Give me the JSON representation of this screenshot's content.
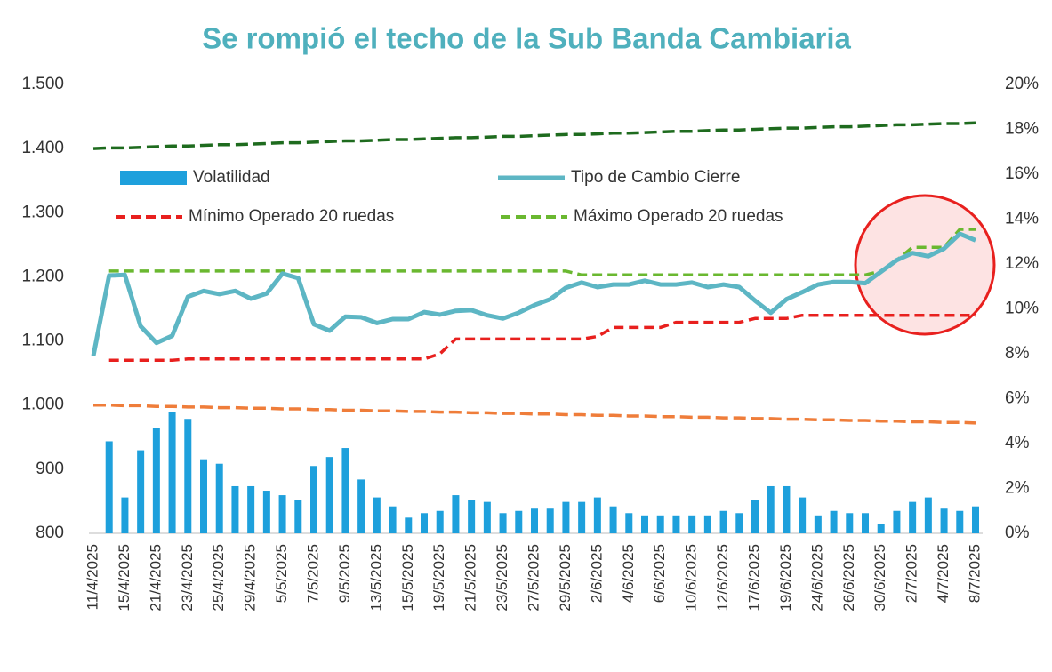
{
  "chart_data": {
    "type": "line",
    "title": "Se rompió el techo de la Sub Banda Cambiaria",
    "categories": [
      "11/4/2025",
      null,
      "15/4/2025",
      null,
      "21/4/2025",
      null,
      "23/4/2025",
      null,
      "25/4/2025",
      null,
      "29/4/2025",
      null,
      "5/5/2025",
      null,
      "7/5/2025",
      null,
      "9/5/2025",
      null,
      "13/5/2025",
      null,
      "15/5/2025",
      null,
      "19/5/2025",
      null,
      "21/5/2025",
      null,
      "23/5/2025",
      null,
      "27/5/2025",
      null,
      "29/5/2025",
      null,
      "2/6/2025",
      null,
      "4/6/2025",
      null,
      "6/6/2025",
      null,
      "10/6/2025",
      null,
      "12/6/2025",
      null,
      "17/6/2025",
      null,
      "19/6/2025",
      null,
      "24/6/2025",
      null,
      "26/6/2025",
      null,
      "30/6/2025",
      null,
      "2/7/2025",
      null,
      "4/7/2025",
      null,
      "8/7/2025"
    ],
    "ylim": [
      800,
      1500
    ],
    "yticks": [
      800,
      900,
      {
        "value": 1000,
        "label": "1.000"
      },
      {
        "value": 1100,
        "label": "1.100"
      },
      {
        "value": 1200,
        "label": "1.200"
      },
      {
        "value": 1300,
        "label": "1.300"
      },
      {
        "value": 1400,
        "label": "1.400"
      },
      {
        "value": 1500,
        "label": "1.500"
      }
    ],
    "y2lim": [
      0,
      20
    ],
    "y2ticks": [
      {
        "value": 0,
        "label": "0%"
      },
      {
        "value": 2,
        "label": "2%"
      },
      {
        "value": 4,
        "label": "4%"
      },
      {
        "value": 6,
        "label": "6%"
      },
      {
        "value": 8,
        "label": "8%"
      },
      {
        "value": 10,
        "label": "10%"
      },
      {
        "value": 12,
        "label": "12%"
      },
      {
        "value": 14,
        "label": "14%"
      },
      {
        "value": 16,
        "label": "16%"
      },
      {
        "value": 18,
        "label": "18%"
      },
      {
        "value": 20,
        "label": "20%"
      }
    ],
    "series": [
      {
        "name": "Volatilidad",
        "kind": "bar",
        "axis": "y2",
        "color": "#1ea0dc",
        "values": [
          null,
          4.1,
          1.6,
          3.7,
          4.7,
          5.4,
          5.1,
          3.3,
          3.1,
          2.1,
          2.1,
          1.9,
          1.7,
          1.5,
          3.0,
          3.4,
          3.8,
          2.4,
          1.6,
          1.2,
          0.7,
          0.9,
          1.0,
          1.7,
          1.5,
          1.4,
          0.9,
          1.0,
          1.1,
          1.1,
          1.4,
          1.4,
          1.6,
          1.2,
          0.9,
          0.8,
          0.8,
          0.8,
          0.8,
          0.8,
          1.0,
          0.9,
          1.5,
          2.1,
          2.1,
          1.6,
          0.8,
          1.0,
          0.9,
          0.9,
          0.4,
          1.0,
          1.4,
          1.6,
          1.1,
          1.0,
          1.2
        ]
      },
      {
        "name": "Tipo de Cambio Cierre",
        "kind": "line",
        "color": "#5db6c4",
        "values": [
          1077,
          1202,
          1203,
          1123,
          1097,
          1108,
          1169,
          1178,
          1173,
          1178,
          1166,
          1174,
          1205,
          1198,
          1126,
          1116,
          1138,
          1137,
          1128,
          1134,
          1134,
          1145,
          1141,
          1147,
          1148,
          1140,
          1135,
          1144,
          1156,
          1165,
          1183,
          1191,
          1184,
          1188,
          1188,
          1194,
          1188,
          1188,
          1191,
          1184,
          1188,
          1184,
          1163,
          1144,
          1165,
          1176,
          1188,
          1192,
          1192,
          1190,
          1208,
          1226,
          1237,
          1232,
          1244,
          1267,
          1257
        ]
      },
      {
        "name": "Mínimo Operado 20 ruedas",
        "kind": "line",
        "dash": true,
        "color": "#e8201e",
        "values": [
          null,
          1070,
          1070,
          1070,
          1070,
          1070,
          1072,
          1072,
          1072,
          1072,
          1072,
          1072,
          1072,
          1072,
          1072,
          1072,
          1072,
          1072,
          1072,
          1072,
          1072,
          1072,
          1080,
          1103,
          1103,
          1103,
          1103,
          1103,
          1103,
          1103,
          1103,
          1103,
          1107,
          1121,
          1121,
          1121,
          1121,
          1129,
          1129,
          1129,
          1129,
          1129,
          1135,
          1135,
          1135,
          1140,
          1140,
          1140,
          1140,
          1140,
          1140,
          1140,
          1140,
          1140,
          1140,
          1140,
          1140
        ]
      },
      {
        "name": "Máximo Operado 20 ruedas",
        "kind": "line",
        "dash": true,
        "color": "#6ab830",
        "values": [
          null,
          1209,
          1209,
          1209,
          1209,
          1209,
          1209,
          1209,
          1209,
          1209,
          1209,
          1209,
          1209,
          1209,
          1209,
          1209,
          1209,
          1209,
          1209,
          1209,
          1209,
          1209,
          1209,
          1209,
          1209,
          1209,
          1209,
          1209,
          1209,
          1209,
          1209,
          1203,
          1203,
          1203,
          1203,
          1203,
          1203,
          1203,
          1203,
          1203,
          1203,
          1203,
          1203,
          1203,
          1203,
          1203,
          1203,
          1203,
          1203,
          1203,
          1209,
          1226,
          1246,
          1246,
          1246,
          1274,
          1274
        ]
      },
      {
        "kind": "line",
        "dash": true,
        "color": "#1e6b1e",
        "values": [
          1400,
          1401,
          1401,
          1402,
          1403,
          1404,
          1404,
          1405,
          1406,
          1406,
          1407,
          1408,
          1409,
          1409,
          1410,
          1411,
          1412,
          1412,
          1413,
          1414,
          1414,
          1415,
          1416,
          1417,
          1417,
          1418,
          1419,
          1419,
          1420,
          1421,
          1422,
          1422,
          1423,
          1424,
          1424,
          1425,
          1426,
          1427,
          1427,
          1428,
          1429,
          1429,
          1430,
          1431,
          1432,
          1432,
          1433,
          1434,
          1434,
          1435,
          1436,
          1437,
          1437,
          1438,
          1439,
          1439,
          1440
        ]
      },
      {
        "kind": "line",
        "dash": true,
        "color": "#ef7d3a",
        "values": [
          1000,
          1000,
          999,
          999,
          998,
          998,
          997,
          997,
          996,
          996,
          995,
          995,
          994,
          994,
          993,
          993,
          992,
          992,
          991,
          991,
          990,
          990,
          989,
          989,
          988,
          988,
          987,
          987,
          986,
          986,
          985,
          985,
          984,
          984,
          983,
          983,
          982,
          982,
          981,
          981,
          980,
          980,
          979,
          979,
          978,
          978,
          977,
          977,
          976,
          976,
          975,
          975,
          974,
          974,
          973,
          973,
          972
        ]
      }
    ]
  }
}
